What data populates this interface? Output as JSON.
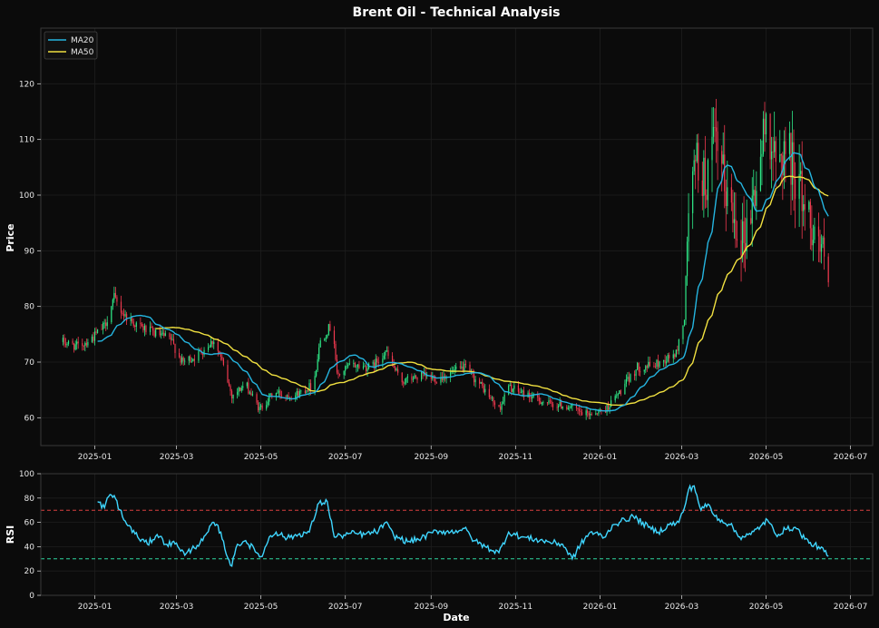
{
  "title": "Brent Oil - Technical Analysis",
  "colors": {
    "background": "#0b0b0b",
    "panel": "#0b0b0b",
    "frame": "#3a3a3a",
    "grid": "#1e1e1e",
    "up": "#2ee887",
    "down": "#f0394f",
    "ma20": "#25b5e0",
    "ma50": "#f0e040",
    "rsi": "#3fd6ff",
    "overbought": "#d94040",
    "oversold": "#2ed6a0"
  },
  "chart_data": [
    {
      "type": "candlestick",
      "ylabel": "Price",
      "ylim": [
        55,
        130
      ],
      "xlim": [
        "2024-11-23",
        "2026-07-17"
      ],
      "yticks": [
        60,
        70,
        80,
        90,
        100,
        110,
        120
      ],
      "xticks": [
        "2025-01",
        "2025-03",
        "2025-05",
        "2025-07",
        "2025-09",
        "2025-11",
        "2026-01",
        "2026-03",
        "2026-05",
        "2026-07"
      ],
      "xtick_dates": [
        "2025-01-01",
        "2025-03-01",
        "2025-05-01",
        "2025-07-01",
        "2025-09-01",
        "2025-11-01",
        "2026-01-01",
        "2026-03-01",
        "2026-05-01",
        "2026-07-01"
      ],
      "grid": true,
      "legend_position": "top-left",
      "series": [
        {
          "name": "MA20",
          "role": "ma20",
          "line_style": "solid"
        },
        {
          "name": "MA50",
          "role": "ma50",
          "line_style": "solid"
        }
      ],
      "close_anchors": [
        [
          "2024-12-09",
          73.6
        ],
        [
          "2024-12-20",
          72.8
        ],
        [
          "2024-12-31",
          74.5
        ],
        [
          "2025-01-08",
          76.5
        ],
        [
          "2025-01-15",
          81.5
        ],
        [
          "2025-01-22",
          78.5
        ],
        [
          "2025-02-01",
          76.5
        ],
        [
          "2025-02-10",
          75.5
        ],
        [
          "2025-02-25",
          74.0
        ],
        [
          "2025-03-05",
          70.0
        ],
        [
          "2025-03-15",
          71.0
        ],
        [
          "2025-03-28",
          74.0
        ],
        [
          "2025-04-03",
          70.0
        ],
        [
          "2025-04-10",
          64.0
        ],
        [
          "2025-04-20",
          66.0
        ],
        [
          "2025-04-30",
          61.5
        ],
        [
          "2025-05-10",
          64.5
        ],
        [
          "2025-05-25",
          64.0
        ],
        [
          "2025-06-08",
          66.0
        ],
        [
          "2025-06-13",
          74.0
        ],
        [
          "2025-06-22",
          77.0
        ],
        [
          "2025-06-25",
          67.5
        ],
        [
          "2025-07-05",
          69.5
        ],
        [
          "2025-07-20",
          69.0
        ],
        [
          "2025-07-30",
          72.0
        ],
        [
          "2025-08-10",
          66.5
        ],
        [
          "2025-08-25",
          67.5
        ],
        [
          "2025-09-05",
          67.0
        ],
        [
          "2025-09-25",
          69.0
        ],
        [
          "2025-10-08",
          65.5
        ],
        [
          "2025-10-20",
          61.5
        ],
        [
          "2025-10-27",
          65.5
        ],
        [
          "2025-11-10",
          64.0
        ],
        [
          "2025-11-25",
          62.5
        ],
        [
          "2025-12-10",
          62.0
        ],
        [
          "2025-12-20",
          60.5
        ],
        [
          "2026-01-05",
          61.5
        ],
        [
          "2026-01-15",
          64.5
        ],
        [
          "2026-01-28",
          69.0
        ],
        [
          "2026-02-10",
          69.5
        ],
        [
          "2026-02-25",
          71.5
        ],
        [
          "2026-03-03",
          78.0
        ],
        [
          "2026-03-06",
          98.0
        ],
        [
          "2026-03-12",
          106.0
        ],
        [
          "2026-03-18",
          102.0
        ],
        [
          "2026-03-25",
          109.0
        ],
        [
          "2026-04-05",
          98.0
        ],
        [
          "2026-04-15",
          92.0
        ],
        [
          "2026-04-25",
          103.0
        ],
        [
          "2026-05-02",
          115.0
        ],
        [
          "2026-05-08",
          104.0
        ],
        [
          "2026-05-15",
          109.0
        ],
        [
          "2026-05-22",
          104.0
        ],
        [
          "2026-06-01",
          96.0
        ],
        [
          "2026-06-08",
          92.0
        ],
        [
          "2026-06-12",
          88.0
        ],
        [
          "2026-06-15",
          84.0
        ]
      ]
    },
    {
      "type": "line",
      "xlabel": "Date",
      "ylabel": "RSI",
      "ylim": [
        0,
        100
      ],
      "yticks": [
        0,
        20,
        40,
        60,
        80,
        100
      ],
      "xticks": [
        "2025-01",
        "2025-03",
        "2025-05",
        "2025-07",
        "2025-09",
        "2025-11",
        "2026-01",
        "2026-03",
        "2026-05",
        "2026-07"
      ],
      "reference_lines": [
        {
          "value": 70,
          "role": "overbought",
          "line_style": "dashed"
        },
        {
          "value": 30,
          "role": "oversold",
          "line_style": "dashed"
        }
      ],
      "grid": true,
      "series": [
        {
          "name": "RSI",
          "role": "rsi",
          "x": [
            "2025-01-03",
            "2025-01-08",
            "2025-01-10",
            "2025-01-15",
            "2025-01-22",
            "2025-02-01",
            "2025-02-08",
            "2025-02-15",
            "2025-02-22",
            "2025-03-01",
            "2025-03-07",
            "2025-03-12",
            "2025-03-20",
            "2025-03-28",
            "2025-04-02",
            "2025-04-05",
            "2025-04-10",
            "2025-04-14",
            "2025-04-20",
            "2025-04-28",
            "2025-05-02",
            "2025-05-07",
            "2025-05-12",
            "2025-05-20",
            "2025-05-28",
            "2025-06-05",
            "2025-06-12",
            "2025-06-18",
            "2025-06-23",
            "2025-06-28",
            "2025-07-05",
            "2025-07-15",
            "2025-07-25",
            "2025-07-30",
            "2025-08-05",
            "2025-08-15",
            "2025-08-25",
            "2025-09-05",
            "2025-09-15",
            "2025-09-25",
            "2025-10-02",
            "2025-10-10",
            "2025-10-20",
            "2025-10-27",
            "2025-11-05",
            "2025-11-15",
            "2025-11-25",
            "2025-12-05",
            "2025-12-12",
            "2025-12-18",
            "2025-12-25",
            "2026-01-05",
            "2026-01-10",
            "2026-01-15",
            "2026-01-25",
            "2026-02-05",
            "2026-02-12",
            "2026-02-20",
            "2026-02-27",
            "2026-03-03",
            "2026-03-06",
            "2026-03-10",
            "2026-03-15",
            "2026-03-20",
            "2026-03-25",
            "2026-04-05",
            "2026-04-12",
            "2026-04-20",
            "2026-04-28",
            "2026-05-02",
            "2026-05-08",
            "2026-05-15",
            "2026-05-22",
            "2026-06-01",
            "2026-06-08",
            "2026-06-12",
            "2026-06-15"
          ],
          "values": [
            77,
            72,
            80,
            82,
            62,
            48,
            42,
            50,
            42,
            43,
            33,
            38,
            45,
            60,
            52,
            38,
            24,
            42,
            45,
            35,
            32,
            48,
            52,
            47,
            50,
            52,
            76,
            77,
            48,
            49,
            51,
            50,
            53,
            60,
            49,
            44,
            47,
            53,
            52,
            55,
            45,
            40,
            35,
            52,
            48,
            46,
            44,
            42,
            30,
            42,
            52,
            48,
            58,
            60,
            65,
            56,
            52,
            58,
            60,
            72,
            87,
            90,
            70,
            75,
            65,
            58,
            48,
            50,
            58,
            62,
            50,
            54,
            56,
            43,
            40,
            36,
            32
          ]
        }
      ]
    }
  ]
}
